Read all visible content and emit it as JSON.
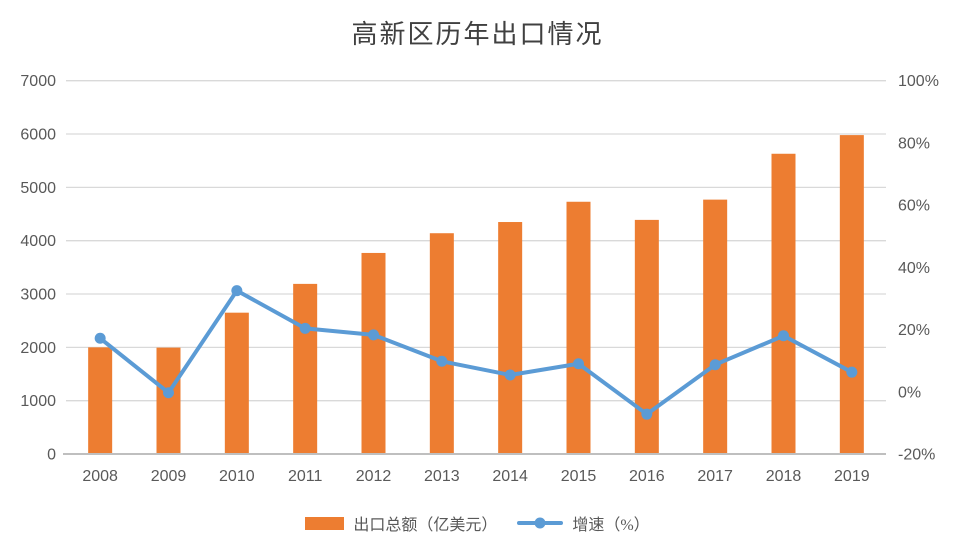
{
  "chart_data": {
    "type": "bar",
    "subtype": "combo-bar-line",
    "title": "高新区历年出口情况",
    "categories": [
      "2008",
      "2009",
      "2010",
      "2011",
      "2012",
      "2013",
      "2014",
      "2015",
      "2016",
      "2017",
      "2018",
      "2019"
    ],
    "series": [
      {
        "name": "出口总额（亿美元）",
        "type": "bar",
        "axis": "left",
        "color": "#ED7D31",
        "values": [
          2000,
          1995,
          2650,
          3190,
          3770,
          4140,
          4350,
          4730,
          4390,
          4770,
          5630,
          5980
        ]
      },
      {
        "name": "增速（%）",
        "type": "line",
        "axis": "right",
        "color": "#5B9BD5",
        "marker": "circle",
        "values": [
          17.2,
          -0.3,
          32.5,
          20.4,
          18.3,
          9.8,
          5.4,
          9.0,
          -7.2,
          8.7,
          18.0,
          6.3
        ]
      }
    ],
    "left_axis": {
      "min": 0,
      "max": 7000,
      "step": 1000,
      "tick_labels": [
        "0",
        "1000",
        "2000",
        "3000",
        "4000",
        "5000",
        "6000",
        "7000"
      ]
    },
    "right_axis": {
      "min": -20,
      "max": 100,
      "step": 20,
      "tick_labels": [
        "-20%",
        "0%",
        "20%",
        "40%",
        "60%",
        "80%",
        "100%"
      ]
    },
    "grid": true,
    "legend_position": "bottom",
    "colors": {
      "bar": "#ED7D31",
      "line": "#5B9BD5",
      "gridline": "#D9D9D9",
      "axis_line": "#BFBFBF",
      "text": "#595959",
      "title": "#404040",
      "background": "#FFFFFF"
    }
  }
}
